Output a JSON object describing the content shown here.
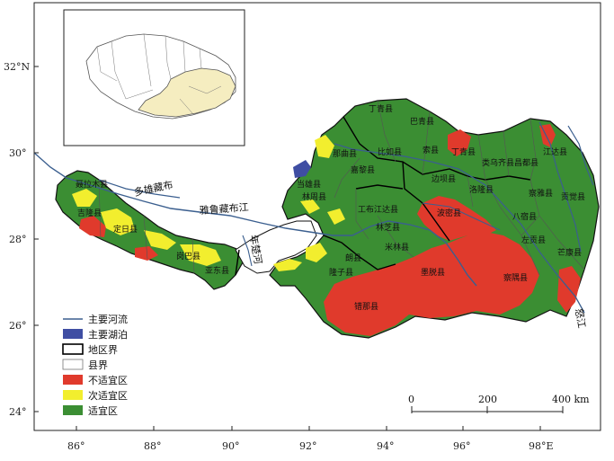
{
  "colors": {
    "suitable": "#3b8e33",
    "sub_suitable": "#f2ee2e",
    "unsuitable": "#e03a2c",
    "river": "#3b5f8f",
    "lake": "#3f4ea3",
    "inset_fill": "#f5edc0",
    "frame": "#222222"
  },
  "axes": {
    "lat_labels": [
      "32°N",
      "30°",
      "28°",
      "26°",
      "24°"
    ],
    "lon_labels": [
      "86°",
      "88°",
      "90°",
      "92°",
      "94°",
      "96°",
      "98°E"
    ]
  },
  "rivers": {
    "duoxiong": "多雄藏布",
    "yarlung": "雅鲁藏布江",
    "nianchu": "年楚河",
    "nujiang": "怒江"
  },
  "counties": {
    "dingqing": "丁青县",
    "baqing": "巴青县",
    "naqu": "那曲县",
    "biru": "比如县",
    "suo": "索县",
    "jiali": "嘉黎县",
    "leiwuqi": "类乌齐县",
    "changdu": "昌都县",
    "jiangda": "江达县",
    "basu": "八宿县",
    "bianba": "边坝县",
    "luolong": "洛隆县",
    "chaya": "察雅县",
    "gongjue": "贡觉县",
    "zuogong": "左贡县",
    "mangkang": "芒康县",
    "zogang": "宗贡县",
    "chayu": "察隅县",
    "motuo": "墨脱县",
    "bomi": "波密县",
    "linzhi": "林芝县",
    "gongbujiangda": "工布江达县",
    "milin": "米林县",
    "lang": "朗县",
    "longzi": "隆子县",
    "cuona": "错那县",
    "dangxiong": "当雄县",
    "linzhou": "林周县",
    "yadong": "亚东县",
    "nielamu": "聂拉木县",
    "jilong": "吉隆县",
    "dingri": "定日县",
    "gangba": "岗巴县",
    "jiacha": "加查县",
    "lhasa": "拉萨"
  },
  "legend": {
    "items": [
      {
        "label": "主要河流",
        "kind": "line",
        "color": "#3b5f8f"
      },
      {
        "label": "主要湖泊",
        "kind": "fill",
        "color": "#3f4ea3"
      },
      {
        "label": "地区界",
        "kind": "box-bold",
        "color": "#000000"
      },
      {
        "label": "县界",
        "kind": "box-thin",
        "color": "#777777"
      },
      {
        "label": "不适宜区",
        "kind": "fill",
        "color": "#e03a2c"
      },
      {
        "label": "次适宜区",
        "kind": "fill",
        "color": "#f2ee2e"
      },
      {
        "label": "适宜区",
        "kind": "fill",
        "color": "#3b8e33"
      }
    ]
  },
  "scale_bar": {
    "labels": [
      "0",
      "200",
      "400 km"
    ]
  }
}
